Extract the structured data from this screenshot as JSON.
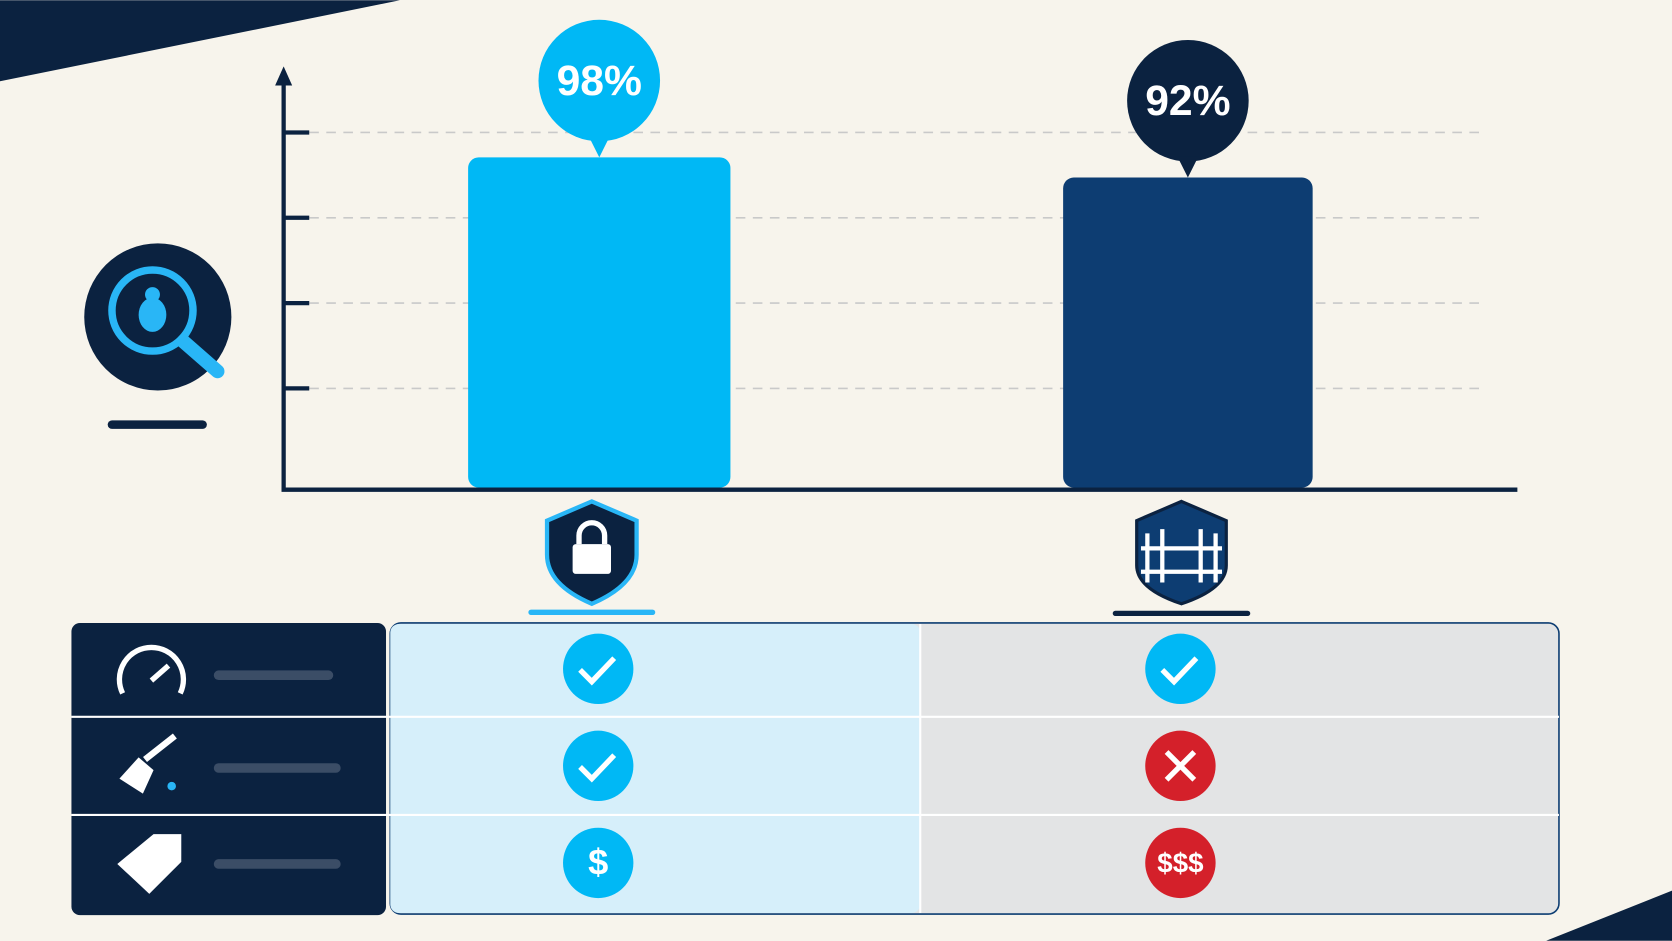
{
  "chart_data": {
    "type": "bar",
    "categories": [
      null,
      null
    ],
    "values": [
      98,
      92
    ],
    "value_labels": [
      "98%",
      "92%"
    ],
    "colors": [
      "#00b8f5",
      "#0d3d72"
    ],
    "bubble_colors": [
      "#00b8f5",
      "#0b2240"
    ],
    "ylim": [
      0,
      100
    ]
  },
  "comparison": {
    "cost": [
      "$",
      "$$$"
    ]
  }
}
